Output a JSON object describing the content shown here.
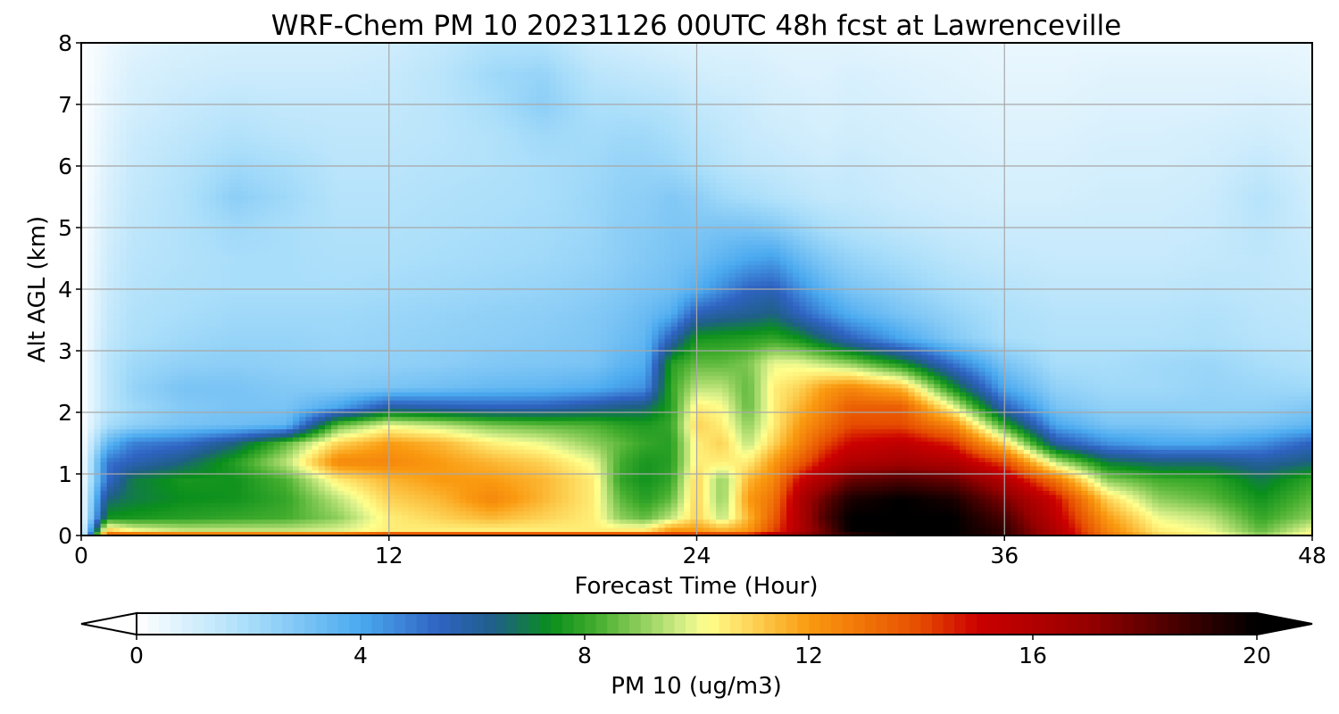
{
  "chart_data": {
    "type": "heatmap",
    "title": "WRF-Chem PM 10  20231126 00UTC 48h fcst at Lawrenceville",
    "xlabel": "Forecast Time (Hour)",
    "ylabel": "Alt AGL (km)",
    "xlim": [
      0,
      48
    ],
    "ylim": [
      0,
      8
    ],
    "x_ticks": [
      "0",
      "12",
      "24",
      "36",
      "48"
    ],
    "y_ticks": [
      "0",
      "1",
      "2",
      "3",
      "4",
      "5",
      "6",
      "7",
      "8"
    ],
    "grid": true,
    "colorbar": {
      "label": "PM 10  (ug/m3)",
      "ticks": [
        "0",
        "4",
        "8",
        "12",
        "16",
        "20"
      ],
      "range": [
        0,
        20
      ],
      "extend": "both",
      "orientation": "horizontal",
      "placement": "bottom",
      "colors": [
        {
          "v": 0,
          "c": "#ffffff"
        },
        {
          "v": 2,
          "c": "#a9defa"
        },
        {
          "v": 4,
          "c": "#4aa9ef"
        },
        {
          "v": 5.4,
          "c": "#2f63c2"
        },
        {
          "v": 6.4,
          "c": "#1f5f88"
        },
        {
          "v": 7.4,
          "c": "#0a8f1c"
        },
        {
          "v": 8.2,
          "c": "#43ad2e"
        },
        {
          "v": 9.8,
          "c": "#d9f08a"
        },
        {
          "v": 10.2,
          "c": "#ffff8c"
        },
        {
          "v": 12,
          "c": "#fa9a10"
        },
        {
          "v": 14,
          "c": "#e64c00"
        },
        {
          "v": 15,
          "c": "#cc0000"
        },
        {
          "v": 17,
          "c": "#960000"
        },
        {
          "v": 20,
          "c": "#000000"
        }
      ]
    },
    "x": [
      0,
      1,
      2,
      4,
      6,
      8,
      10,
      12,
      14,
      16,
      18,
      20,
      21,
      22,
      23,
      24,
      25,
      26,
      27,
      28,
      29,
      30,
      32,
      34,
      36,
      38,
      40,
      42,
      44,
      46,
      48
    ],
    "y": [
      0,
      0.1,
      0.3,
      0.6,
      0.9,
      1.2,
      1.5,
      1.8,
      2.1,
      2.4,
      2.8,
      3.2,
      3.6,
      4.0,
      4.5,
      5.0,
      5.5,
      6.0,
      6.5,
      7.0,
      7.5,
      8.0
    ],
    "z": [
      [
        0.0,
        14.0,
        14.0,
        14.0,
        14.0,
        14.0,
        14.0,
        15.0,
        15.0,
        15.0,
        15.0,
        15.0,
        15.0,
        15.0,
        15.0,
        15.0,
        15.0,
        15.0,
        16.0,
        17.0,
        18.0,
        19.0,
        20.0,
        20.0,
        19.0,
        16.0,
        13.0,
        11.0,
        10.5,
        9.0,
        10.5
      ],
      [
        0.0,
        11.0,
        10.0,
        9.5,
        9.5,
        9.5,
        9.8,
        10.5,
        10.5,
        10.5,
        10.5,
        10.5,
        10.5,
        10.5,
        12.0,
        12.0,
        11.5,
        12.0,
        14.0,
        16.0,
        18.0,
        20.0,
        20.0,
        20.0,
        19.0,
        16.0,
        12.5,
        10.5,
        10.0,
        8.5,
        10.0
      ],
      [
        0.0,
        7.5,
        7.6,
        7.8,
        8.0,
        8.2,
        9.0,
        10.5,
        11.0,
        11.5,
        11.0,
        10.5,
        9.0,
        8.5,
        9.5,
        11.0,
        9.5,
        11.5,
        13.5,
        16.0,
        18.5,
        20.0,
        20.0,
        20.0,
        18.5,
        15.5,
        12.0,
        10.0,
        9.5,
        8.0,
        9.0
      ],
      [
        0.0,
        6.5,
        7.0,
        7.4,
        7.5,
        8.0,
        9.5,
        11.0,
        11.5,
        12.5,
        11.5,
        10.5,
        8.5,
        7.8,
        8.5,
        11.0,
        9.0,
        12.0,
        13.0,
        16.0,
        18.0,
        19.5,
        20.0,
        19.5,
        17.5,
        15.0,
        11.0,
        9.0,
        8.5,
        7.5,
        8.5
      ],
      [
        0.0,
        5.2,
        7.0,
        7.6,
        7.5,
        8.3,
        10.5,
        11.5,
        12.0,
        12.0,
        11.5,
        10.5,
        8.0,
        7.5,
        8.0,
        11.0,
        9.0,
        11.5,
        12.5,
        15.0,
        16.5,
        18.0,
        18.5,
        18.0,
        16.0,
        13.0,
        9.0,
        8.2,
        8.0,
        7.0,
        8.0
      ],
      [
        0.0,
        5.0,
        5.6,
        6.5,
        7.8,
        9.5,
        12.5,
        12.5,
        12.0,
        11.5,
        11.0,
        10.0,
        8.2,
        7.6,
        7.8,
        10.5,
        10.5,
        10.5,
        12.0,
        13.5,
        15.0,
        16.0,
        16.5,
        16.0,
        14.0,
        9.5,
        7.0,
        6.5,
        6.5,
        6.0,
        6.5
      ],
      [
        0.0,
        3.5,
        4.8,
        5.2,
        6.5,
        8.5,
        11.0,
        12.0,
        11.5,
        10.5,
        10.0,
        9.0,
        8.5,
        8.0,
        7.8,
        10.5,
        11.0,
        9.5,
        11.0,
        12.5,
        14.0,
        15.0,
        15.5,
        14.5,
        11.0,
        6.0,
        4.5,
        4.0,
        4.0,
        4.5,
        5.5
      ],
      [
        0.0,
        2.0,
        2.5,
        3.0,
        3.2,
        3.5,
        8.5,
        10.0,
        9.5,
        8.8,
        8.5,
        8.3,
        7.9,
        7.7,
        8.0,
        11.0,
        10.5,
        9.0,
        10.5,
        12.0,
        13.0,
        14.0,
        14.0,
        12.5,
        8.0,
        4.0,
        3.0,
        3.0,
        2.8,
        3.0,
        3.5
      ],
      [
        0.0,
        1.6,
        2.2,
        2.8,
        3.0,
        3.0,
        4.0,
        5.8,
        5.6,
        5.4,
        5.5,
        6.0,
        6.3,
        6.5,
        7.8,
        10.5,
        10.2,
        8.5,
        10.5,
        11.5,
        12.5,
        13.5,
        13.5,
        10.0,
        5.5,
        3.0,
        2.5,
        2.5,
        2.5,
        2.5,
        2.8
      ],
      [
        0.0,
        1.6,
        2.4,
        3.0,
        3.0,
        2.8,
        2.8,
        3.0,
        3.2,
        3.4,
        3.5,
        3.8,
        4.2,
        4.5,
        8.0,
        9.5,
        9.5,
        8.5,
        10.5,
        11.0,
        12.0,
        12.5,
        11.5,
        7.5,
        4.0,
        2.5,
        2.2,
        2.2,
        2.4,
        2.3,
        2.2
      ],
      [
        0.0,
        1.6,
        2.2,
        2.5,
        2.6,
        2.5,
        2.4,
        2.5,
        2.6,
        2.8,
        2.9,
        3.0,
        3.5,
        3.8,
        7.8,
        8.5,
        8.5,
        8.8,
        10.0,
        10.0,
        9.5,
        9.0,
        7.5,
        5.0,
        3.0,
        2.0,
        2.0,
        2.2,
        2.3,
        2.0,
        1.8
      ],
      [
        0.0,
        1.4,
        1.9,
        2.2,
        2.4,
        2.4,
        2.3,
        2.4,
        2.5,
        2.6,
        2.7,
        2.9,
        3.2,
        3.5,
        5.6,
        7.6,
        7.7,
        7.8,
        8.0,
        7.5,
        6.5,
        5.5,
        4.0,
        2.8,
        2.0,
        1.8,
        1.8,
        1.8,
        1.9,
        1.7,
        1.6
      ],
      [
        0.0,
        1.3,
        1.8,
        2.0,
        2.2,
        2.2,
        2.2,
        2.3,
        2.4,
        2.5,
        2.6,
        2.8,
        3.0,
        3.3,
        3.8,
        5.6,
        6.0,
        6.2,
        6.5,
        5.5,
        4.6,
        3.8,
        3.0,
        2.4,
        1.9,
        1.7,
        1.7,
        1.7,
        1.8,
        1.6,
        1.5
      ],
      [
        0.0,
        1.2,
        1.7,
        1.9,
        2.0,
        2.0,
        2.0,
        2.1,
        2.2,
        2.3,
        2.4,
        2.6,
        2.8,
        3.0,
        3.2,
        3.8,
        4.6,
        5.4,
        5.6,
        4.5,
        3.6,
        3.0,
        2.5,
        2.0,
        1.7,
        1.5,
        1.5,
        1.5,
        1.6,
        1.5,
        1.4
      ],
      [
        0.0,
        1.1,
        1.6,
        1.8,
        2.0,
        2.0,
        1.9,
        1.9,
        2.0,
        2.1,
        2.2,
        2.4,
        2.6,
        2.8,
        3.0,
        3.2,
        3.6,
        4.0,
        4.2,
        3.4,
        2.8,
        2.4,
        2.0,
        1.6,
        1.4,
        1.3,
        1.3,
        1.3,
        1.4,
        1.5,
        1.3
      ],
      [
        0.0,
        1.0,
        1.5,
        1.8,
        2.2,
        2.0,
        1.8,
        1.8,
        1.9,
        2.0,
        2.1,
        2.3,
        2.6,
        2.7,
        2.9,
        2.9,
        3.0,
        3.0,
        2.8,
        2.4,
        2.0,
        1.8,
        1.5,
        1.3,
        1.2,
        1.2,
        1.2,
        1.2,
        1.3,
        1.6,
        1.2
      ],
      [
        0.0,
        0.9,
        1.4,
        1.8,
        2.6,
        2.2,
        1.7,
        1.7,
        1.8,
        1.9,
        2.0,
        2.3,
        2.5,
        2.6,
        2.8,
        2.6,
        2.2,
        2.0,
        1.8,
        1.6,
        1.4,
        1.4,
        1.2,
        1.1,
        1.0,
        1.0,
        1.1,
        1.1,
        1.2,
        1.7,
        1.1
      ],
      [
        0.0,
        0.8,
        1.3,
        1.7,
        2.2,
        2.0,
        1.6,
        1.6,
        1.7,
        1.8,
        2.0,
        2.2,
        2.4,
        2.4,
        2.3,
        2.0,
        1.7,
        1.5,
        1.4,
        1.3,
        1.2,
        1.3,
        1.1,
        1.0,
        0.9,
        0.9,
        1.0,
        1.0,
        1.1,
        1.4,
        1.0
      ],
      [
        0.0,
        0.7,
        1.2,
        1.5,
        1.8,
        1.6,
        1.5,
        1.5,
        1.6,
        1.8,
        2.2,
        2.1,
        2.2,
        2.2,
        2.0,
        1.7,
        1.5,
        1.3,
        1.2,
        1.1,
        1.0,
        1.1,
        1.0,
        0.9,
        0.8,
        0.8,
        0.9,
        0.9,
        1.0,
        1.1,
        0.9
      ],
      [
        0.0,
        0.6,
        1.0,
        1.3,
        1.5,
        1.4,
        1.4,
        1.4,
        1.6,
        2.0,
        2.6,
        1.9,
        1.9,
        1.8,
        1.7,
        1.4,
        1.3,
        1.2,
        1.0,
        1.0,
        0.9,
        1.0,
        0.9,
        0.8,
        0.7,
        0.7,
        0.8,
        0.8,
        0.8,
        0.9,
        0.8
      ],
      [
        0.0,
        0.5,
        0.9,
        1.1,
        1.2,
        1.2,
        1.2,
        1.3,
        1.6,
        2.2,
        2.4,
        1.6,
        1.5,
        1.4,
        1.3,
        1.1,
        1.0,
        1.0,
        0.9,
        0.8,
        0.8,
        0.9,
        0.8,
        0.7,
        0.6,
        0.6,
        0.7,
        0.7,
        0.7,
        0.7,
        0.6
      ],
      [
        0.0,
        0.4,
        0.7,
        0.9,
        1.0,
        1.0,
        1.0,
        1.1,
        1.4,
        1.8,
        1.8,
        1.2,
        1.1,
        1.0,
        0.9,
        0.8,
        0.8,
        0.8,
        0.7,
        0.7,
        0.7,
        0.7,
        0.6,
        0.6,
        0.5,
        0.5,
        0.5,
        0.5,
        0.5,
        0.5,
        0.5
      ]
    ]
  }
}
